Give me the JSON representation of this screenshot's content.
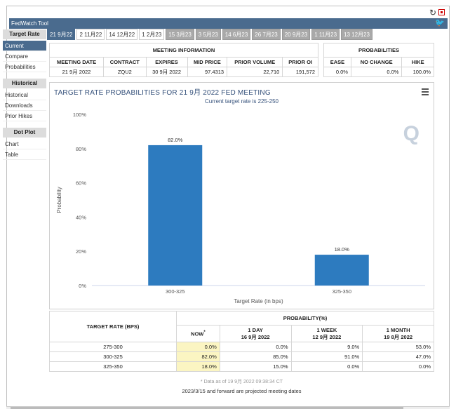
{
  "title": "FedWatch Tool",
  "sidebar": {
    "sections": [
      {
        "head": "Target Rate",
        "items": [
          {
            "label": "Current",
            "active": true
          },
          {
            "label": "Compare"
          },
          {
            "label": "Probabilities"
          }
        ]
      },
      {
        "head": "Historical",
        "items": [
          {
            "label": "Historical"
          },
          {
            "label": "Downloads"
          },
          {
            "label": "Prior Hikes"
          }
        ]
      },
      {
        "head": "Dot Plot",
        "items": [
          {
            "label": "Chart"
          },
          {
            "label": "Table"
          }
        ]
      }
    ]
  },
  "tabs": [
    {
      "label": "21 9月22",
      "state": "active"
    },
    {
      "label": "2 11月22",
      "state": "white"
    },
    {
      "label": "14 12月22",
      "state": "white"
    },
    {
      "label": "1 2月23",
      "state": "white"
    },
    {
      "label": "15 3月23",
      "state": "grey"
    },
    {
      "label": "3 5月23",
      "state": "grey"
    },
    {
      "label": "14 6月23",
      "state": "grey"
    },
    {
      "label": "26 7月23",
      "state": "grey"
    },
    {
      "label": "20 9月23",
      "state": "grey"
    },
    {
      "label": "1 11月23",
      "state": "grey"
    },
    {
      "label": "13 12月23",
      "state": "grey"
    }
  ],
  "meeting_info": {
    "group_label": "MEETING INFORMATION",
    "headers": [
      "MEETING DATE",
      "CONTRACT",
      "EXPIRES",
      "MID PRICE",
      "PRIOR VOLUME",
      "PRIOR OI"
    ],
    "row": [
      "21 9月 2022",
      "ZQU2",
      "30 9月 2022",
      "97.4313",
      "22,710",
      "191,572"
    ]
  },
  "probabilities": {
    "group_label": "PROBABILITIES",
    "headers": [
      "EASE",
      "NO CHANGE",
      "HIKE"
    ],
    "row": [
      "0.0%",
      "0.0%",
      "100.0%"
    ]
  },
  "chart_data": {
    "type": "bar",
    "title": "TARGET RATE PROBABILITIES FOR 21 9月 2022 FED MEETING",
    "subtitle": "Current target rate is 225-250",
    "xlabel": "Target Rate (in bps)",
    "ylabel": "Probability",
    "categories": [
      "300-325",
      "325-350"
    ],
    "values": [
      82.0,
      18.0
    ],
    "data_labels": [
      "82.0%",
      "18.0%"
    ],
    "yticks": [
      "0%",
      "20%",
      "40%",
      "60%",
      "80%",
      "100%"
    ],
    "ylim": [
      0,
      100
    ],
    "bar_color": "#2d7bbf",
    "grid": false
  },
  "bottom_table": {
    "col1_header": "TARGET RATE (BPS)",
    "group_label": "PROBABILITY(%)",
    "cols": [
      {
        "line1": "NOW",
        "line2": ""
      },
      {
        "line1": "1 DAY",
        "line2": "16 9月 2022"
      },
      {
        "line1": "1 WEEK",
        "line2": "12 9月 2022"
      },
      {
        "line1": "1 MONTH",
        "line2": "19 8月 2022"
      }
    ],
    "now_mark": "*",
    "rows": [
      {
        "rate": "275-300",
        "vals": [
          "0.0%",
          "0.0%",
          "9.0%",
          "53.0%"
        ]
      },
      {
        "rate": "300-325",
        "vals": [
          "82.0%",
          "85.0%",
          "91.0%",
          "47.0%"
        ]
      },
      {
        "rate": "325-350",
        "vals": [
          "18.0%",
          "15.0%",
          "0.0%",
          "0.0%"
        ]
      }
    ]
  },
  "note": "* Data as of 19 9月 2022 09:38:34 CT",
  "footer": "2023/3/15 and forward are projected meeting dates"
}
